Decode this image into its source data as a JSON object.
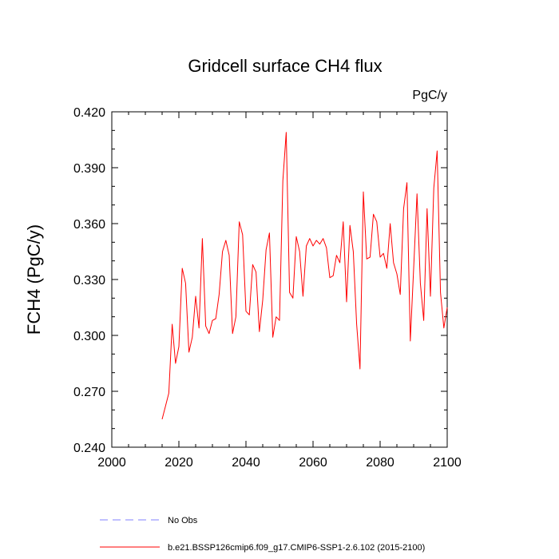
{
  "chart_data": {
    "type": "line",
    "title": "Gridcell surface CH4 flux",
    "units": "PgC/y",
    "ylabel": "FCH4  (PgC/y)",
    "xlabel": "",
    "xlim": [
      2000,
      2100
    ],
    "ylim": [
      0.24,
      0.42
    ],
    "xticks": [
      2000,
      2020,
      2040,
      2060,
      2080,
      2100
    ],
    "xtick_labels": [
      "2000",
      "2020",
      "2040",
      "2060",
      "2080",
      "2100"
    ],
    "yticks": [
      0.24,
      0.27,
      0.3,
      0.33,
      0.36,
      0.39,
      0.42
    ],
    "ytick_labels": [
      "0.240",
      "0.270",
      "0.300",
      "0.330",
      "0.360",
      "0.390",
      "0.420"
    ],
    "legend": [
      {
        "name": "No Obs",
        "color": "#8080ff",
        "style": "dashed"
      },
      {
        "name": "b.e21.BSSP126cmip6.f09_g17.CMIP6-SSP1-2.6.102 (2015-2100)",
        "color": "#ff0000",
        "style": "solid"
      }
    ],
    "series": [
      {
        "name": "b.e21.BSSP126cmip6.f09_g17.CMIP6-SSP1-2.6.102 (2015-2100)",
        "color": "#ff0000",
        "x": [
          2015,
          2016,
          2017,
          2018,
          2019,
          2020,
          2021,
          2022,
          2023,
          2024,
          2025,
          2026,
          2027,
          2028,
          2029,
          2030,
          2031,
          2032,
          2033,
          2034,
          2035,
          2036,
          2037,
          2038,
          2039,
          2040,
          2041,
          2042,
          2043,
          2044,
          2045,
          2046,
          2047,
          2048,
          2049,
          2050,
          2051,
          2052,
          2053,
          2054,
          2055,
          2056,
          2057,
          2058,
          2059,
          2060,
          2061,
          2062,
          2063,
          2064,
          2065,
          2066,
          2067,
          2068,
          2069,
          2070,
          2071,
          2072,
          2073,
          2074,
          2075,
          2076,
          2077,
          2078,
          2079,
          2080,
          2081,
          2082,
          2083,
          2084,
          2085,
          2086,
          2087,
          2088,
          2089,
          2090,
          2091,
          2092,
          2093,
          2094,
          2095,
          2096,
          2097,
          2098,
          2099,
          2100
        ],
        "y": [
          0.255,
          0.262,
          0.269,
          0.306,
          0.285,
          0.294,
          0.336,
          0.328,
          0.291,
          0.299,
          0.321,
          0.304,
          0.352,
          0.305,
          0.301,
          0.308,
          0.309,
          0.322,
          0.345,
          0.351,
          0.343,
          0.301,
          0.31,
          0.361,
          0.354,
          0.313,
          0.311,
          0.338,
          0.334,
          0.302,
          0.319,
          0.346,
          0.355,
          0.299,
          0.31,
          0.308,
          0.383,
          0.409,
          0.323,
          0.32,
          0.353,
          0.345,
          0.321,
          0.348,
          0.352,
          0.348,
          0.351,
          0.349,
          0.352,
          0.347,
          0.331,
          0.332,
          0.343,
          0.339,
          0.361,
          0.318,
          0.359,
          0.345,
          0.306,
          0.282,
          0.377,
          0.341,
          0.342,
          0.365,
          0.361,
          0.342,
          0.344,
          0.336,
          0.36,
          0.339,
          0.333,
          0.322,
          0.368,
          0.382,
          0.297,
          0.336,
          0.376,
          0.328,
          0.308,
          0.368,
          0.321,
          0.379,
          0.399,
          0.323,
          0.304,
          0.315
        ]
      }
    ]
  }
}
